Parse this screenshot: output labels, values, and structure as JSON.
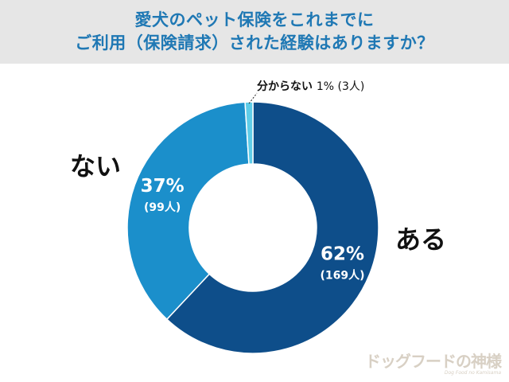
{
  "title": {
    "line1": "愛犬のペット保険をこれまでに",
    "line2": "ご利用（保険請求）された経験はありますか？"
  },
  "chart_data": {
    "type": "pie",
    "style": "donut",
    "title": "愛犬のペット保険をこれまでにご利用（保険請求）された経験はありますか？",
    "slices": [
      {
        "label": "ある",
        "percent": 62,
        "percent_text": "62%",
        "count": 169,
        "count_text": "(169人)",
        "color": "#0e4e8a"
      },
      {
        "label": "ない",
        "percent": 37,
        "percent_text": "37%",
        "count": 99,
        "count_text": "(99人)",
        "color": "#1b8fcb"
      },
      {
        "label": "分からない",
        "percent": 1,
        "percent_text": "1%",
        "count": 3,
        "count_text": "(3人)",
        "color": "#5fcde8"
      }
    ],
    "legend": "none"
  },
  "labels": {
    "aru": "ある",
    "nai": "ない",
    "wakaranai": "分からない",
    "wakaranai_pct": "1% (3人)"
  },
  "watermark": {
    "main": "ドッグフードの神様",
    "sub": "Dog Food no Kamisama"
  }
}
